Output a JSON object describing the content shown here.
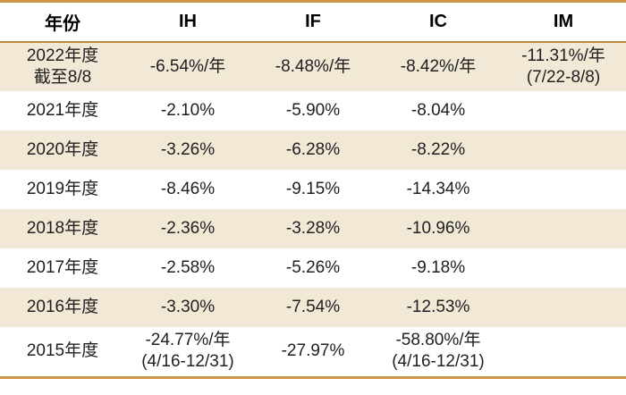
{
  "colors": {
    "accent_border": "#cc9745",
    "header_rule": "#c08c3c",
    "row_stripe": "#f1e8d6",
    "row_plain": "#ffffff",
    "text": "#1f1f1f",
    "header_text": "#000000"
  },
  "table": {
    "header": [
      "年份",
      "IH",
      "IF",
      "IC",
      "IM"
    ],
    "body": [
      [
        [
          "2022年度",
          "截至8/8"
        ],
        [
          "-6.54%/年"
        ],
        [
          "-8.48%/年"
        ],
        [
          "-8.42%/年"
        ],
        [
          "-11.31%/年",
          "(7/22-8/8)"
        ]
      ],
      [
        [
          "2021年度"
        ],
        [
          "-2.10%"
        ],
        [
          "-5.90%"
        ],
        [
          "-8.04%"
        ],
        []
      ],
      [
        [
          "2020年度"
        ],
        [
          "-3.26%"
        ],
        [
          "-6.28%"
        ],
        [
          "-8.22%"
        ],
        []
      ],
      [
        [
          "2019年度"
        ],
        [
          "-8.46%"
        ],
        [
          "-9.15%"
        ],
        [
          "-14.34%"
        ],
        []
      ],
      [
        [
          "2018年度"
        ],
        [
          "-2.36%"
        ],
        [
          "-3.28%"
        ],
        [
          "-10.96%"
        ],
        []
      ],
      [
        [
          "2017年度"
        ],
        [
          "-2.58%"
        ],
        [
          "-5.26%"
        ],
        [
          "-9.18%"
        ],
        []
      ],
      [
        [
          "2016年度"
        ],
        [
          "-3.30%"
        ],
        [
          "-7.54%"
        ],
        [
          "-12.53%"
        ],
        []
      ],
      [
        [
          "2015年度"
        ],
        [
          "-24.77%/年",
          "(4/16-12/31)"
        ],
        [
          "-27.97%"
        ],
        [
          "-58.80%/年",
          "(4/16-12/31)"
        ],
        []
      ]
    ]
  },
  "chart_data": {
    "type": "table",
    "columns": [
      "年份",
      "IH",
      "IF",
      "IC",
      "IM"
    ],
    "rows": [
      [
        "2022年度 截至8/8",
        "-6.54%/年",
        "-8.48%/年",
        "-8.42%/年",
        "-11.31%/年 (7/22-8/8)"
      ],
      [
        "2021年度",
        "-2.10%",
        "-5.90%",
        "-8.04%",
        ""
      ],
      [
        "2020年度",
        "-3.26%",
        "-6.28%",
        "-8.22%",
        ""
      ],
      [
        "2019年度",
        "-8.46%",
        "-9.15%",
        "-14.34%",
        ""
      ],
      [
        "2018年度",
        "-2.36%",
        "-3.28%",
        "-10.96%",
        ""
      ],
      [
        "2017年度",
        "-2.58%",
        "-5.26%",
        "-9.18%",
        ""
      ],
      [
        "2016年度",
        "-3.30%",
        "-7.54%",
        "-12.53%",
        ""
      ],
      [
        "2015年度",
        "-24.77%/年 (4/16-12/31)",
        "-27.97%",
        "-58.80%/年 (4/16-12/31)",
        ""
      ]
    ],
    "layout": {
      "striped_rows": "odd rows beige starting with 2022 row",
      "grid": "no vertical gridlines; gold top/bottom border and gold rule under header",
      "alignment": "all cells centered"
    }
  }
}
